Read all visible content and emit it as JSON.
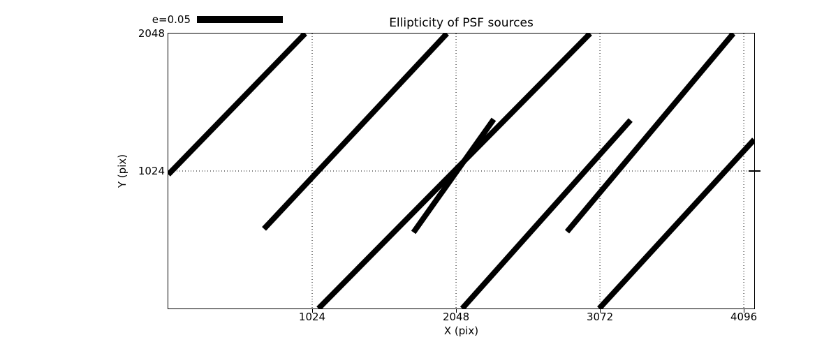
{
  "chart_data": {
    "type": "line",
    "subtype": "psf-ellipticity-whisker-plot",
    "title": "Ellipticity of PSF sources",
    "xlabel": "X (pix)",
    "ylabel": "Y (pix)",
    "xlim": [
      0,
      4170
    ],
    "ylim": [
      0,
      2048
    ],
    "xticks": [
      1024,
      2048,
      3072,
      4096
    ],
    "yticks": [
      1024,
      2048
    ],
    "grid": {
      "style": "dotted",
      "x_lines": [
        1024,
        2048,
        3072,
        4096
      ],
      "y_lines": [
        1024
      ]
    },
    "legend": {
      "label": "e=0.05",
      "position": "top-left-above-axes",
      "bar_color": "#000000"
    },
    "line_color": "#000000",
    "background_color": "#ffffff",
    "segments": [
      {
        "x1": 0,
        "y1": 998,
        "x2": 974,
        "y2": 2048
      },
      {
        "x1": 681,
        "y1": 593,
        "x2": 1983,
        "y2": 2048
      },
      {
        "x1": 1745,
        "y1": 567,
        "x2": 2316,
        "y2": 1409
      },
      {
        "x1": 1069,
        "y1": 0,
        "x2": 3002,
        "y2": 2048
      },
      {
        "x1": 2092,
        "y1": 0,
        "x2": 3290,
        "y2": 1403
      },
      {
        "x1": 2838,
        "y1": 572,
        "x2": 4021,
        "y2": 2048
      },
      {
        "x1": 3067,
        "y1": 0,
        "x2": 4170,
        "y2": 1258
      }
    ]
  }
}
